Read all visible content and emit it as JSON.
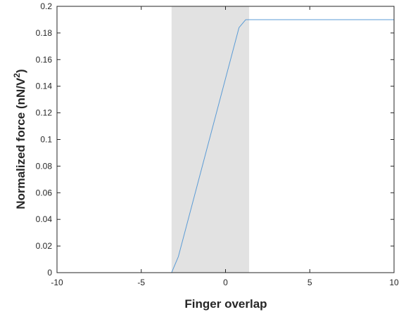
{
  "chart_data": {
    "type": "line",
    "xlabel": "Finger overlap",
    "ylabel": {
      "main": "Normalized force (nN/V",
      "superscript": "2",
      "suffix": ")"
    },
    "xlim": [
      -10,
      10
    ],
    "ylim": [
      0,
      0.2
    ],
    "x_ticks": [
      -10,
      -5,
      0,
      5,
      10
    ],
    "x_tick_labels": [
      "-10",
      "-5",
      "0",
      "5",
      "10"
    ],
    "y_ticks": [
      0,
      0.02,
      0.04,
      0.06,
      0.08,
      0.1,
      0.12,
      0.14,
      0.16,
      0.18,
      0.2
    ],
    "y_tick_labels": [
      "0",
      "0.02",
      "0.04",
      "0.06",
      "0.08",
      "0.1",
      "0.12",
      "0.14",
      "0.16",
      "0.18",
      "0.2"
    ],
    "grid": false,
    "shaded_region": {
      "x_start": -3.2,
      "x_end": 1.4,
      "color": "#e2e2e2"
    },
    "series": [
      {
        "color": "#5b9bd5",
        "x": [
          -10,
          -3.2,
          -2.8,
          0.8,
          1.2,
          10
        ],
        "y": [
          0,
          0,
          0.012,
          0.184,
          0.19,
          0.19
        ]
      }
    ]
  }
}
